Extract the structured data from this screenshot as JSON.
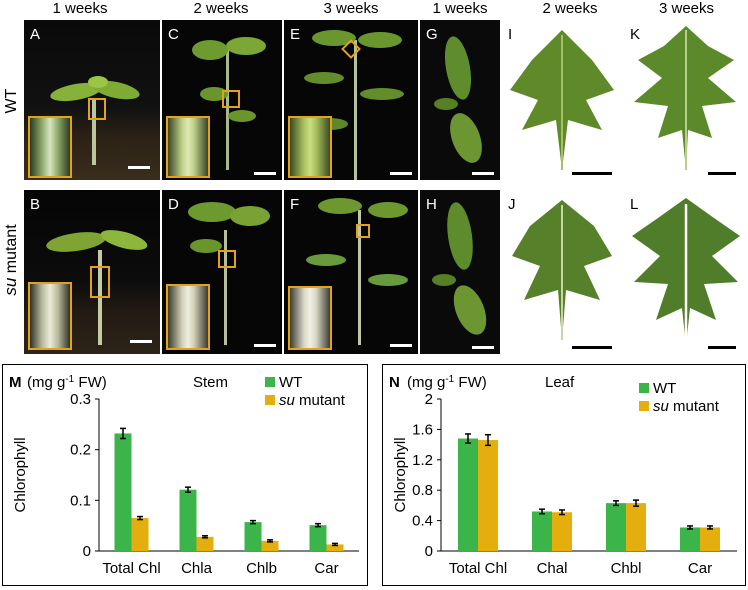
{
  "col_headers": [
    "1 weeks",
    "2 weeks",
    "3 weeks",
    "1 weeks",
    "2 weeks",
    "3 weeks"
  ],
  "row_labels": {
    "wt": "WT",
    "mutant_italic": "su",
    "mutant_rest": " mutant"
  },
  "panels": [
    "A",
    "B",
    "C",
    "D",
    "E",
    "F",
    "G",
    "H",
    "I",
    "J",
    "K",
    "L"
  ],
  "colors": {
    "wt": "#3bb54a",
    "mutant": "#e5ae0f",
    "frame": "#e2a21c"
  },
  "chart_data": [
    {
      "type": "bar",
      "panel": "M",
      "unit_prefix": "(mg g",
      "unit_sup": "-1",
      "unit_suffix": " FW)",
      "title": "Stem",
      "ylabel": "Chlorophyll",
      "categories": [
        "Total Chl",
        "Chla",
        "Chlb",
        "Car"
      ],
      "yticks": [
        "0",
        "0.1",
        "0.2",
        "0.3"
      ],
      "ylim": [
        0,
        0.3
      ],
      "series": [
        {
          "name": "WT",
          "values": [
            0.232,
            0.121,
            0.057,
            0.051
          ],
          "errors": [
            0.01,
            0.005,
            0.003,
            0.003
          ]
        },
        {
          "name_italic": "su",
          "name_rest": " mutant",
          "values": [
            0.065,
            0.028,
            0.02,
            0.013
          ],
          "errors": [
            0.003,
            0.002,
            0.002,
            0.002
          ]
        }
      ]
    },
    {
      "type": "bar",
      "panel": "N",
      "unit_prefix": "(mg g",
      "unit_sup": "-1",
      "unit_suffix": " FW)",
      "title": "Leaf",
      "ylabel": "Chlorophyll",
      "categories": [
        "Total Chl",
        "Chal",
        "Chbl",
        "Car"
      ],
      "yticks": [
        "0",
        "0.4",
        "0.8",
        "1.2",
        "1.6",
        "2"
      ],
      "ylim": [
        0,
        2
      ],
      "series": [
        {
          "name": "WT",
          "values": [
            1.48,
            0.52,
            0.63,
            0.31
          ],
          "errors": [
            0.06,
            0.03,
            0.03,
            0.02
          ]
        },
        {
          "name_italic": "su",
          "name_rest": " mutant",
          "values": [
            1.46,
            0.51,
            0.63,
            0.31
          ],
          "errors": [
            0.07,
            0.03,
            0.04,
            0.02
          ]
        }
      ]
    }
  ]
}
